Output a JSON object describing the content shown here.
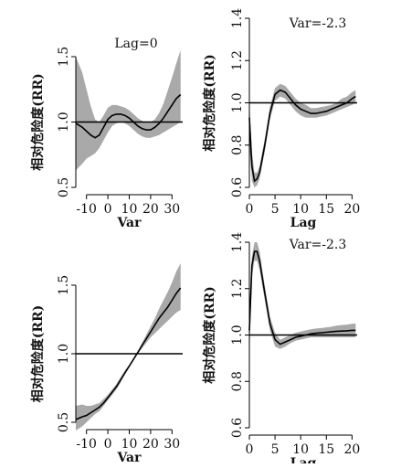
{
  "chart_data": [
    {
      "type": "line",
      "title": "Lag=0",
      "xlabel": "Var",
      "ylabel": "相对危险度(RR)",
      "xlim": [
        -15,
        35
      ],
      "ylim": [
        0.5,
        1.5
      ],
      "xticks": [
        "-10",
        "0",
        "10",
        "20",
        "30"
      ],
      "xtick_values": [
        -10,
        0,
        10,
        20,
        30
      ],
      "yticks": [
        "0.5",
        "1.0",
        "1.5"
      ],
      "ytick_values": [
        0.5,
        1.0,
        1.5
      ],
      "reference_line": 1.0,
      "x": [
        -15,
        -12,
        -10,
        -8,
        -6,
        -4,
        -2,
        0,
        2,
        4,
        6,
        8,
        10,
        12,
        14,
        16,
        18,
        20,
        22,
        24,
        26,
        28,
        30,
        32,
        34
      ],
      "series": [
        {
          "role": "estimate",
          "values": [
            0.99,
            0.96,
            0.93,
            0.9,
            0.88,
            0.9,
            0.96,
            1.02,
            1.05,
            1.06,
            1.06,
            1.05,
            1.03,
            1.0,
            0.97,
            0.95,
            0.94,
            0.94,
            0.96,
            0.99,
            1.03,
            1.08,
            1.13,
            1.18,
            1.21
          ]
        },
        {
          "role": "ci_lower",
          "values": [
            0.63,
            0.68,
            0.72,
            0.74,
            0.76,
            0.8,
            0.86,
            0.92,
            0.97,
            0.99,
            1.0,
            0.99,
            0.97,
            0.94,
            0.91,
            0.89,
            0.88,
            0.88,
            0.89,
            0.9,
            0.92,
            0.94,
            0.96,
            0.98,
            1.0
          ]
        },
        {
          "role": "ci_upper",
          "values": [
            1.5,
            1.38,
            1.25,
            1.12,
            1.02,
            1.0,
            1.05,
            1.11,
            1.13,
            1.13,
            1.12,
            1.11,
            1.09,
            1.06,
            1.03,
            1.01,
            1.0,
            1.0,
            1.02,
            1.07,
            1.14,
            1.24,
            1.34,
            1.45,
            1.55
          ]
        }
      ]
    },
    {
      "type": "line",
      "title": "Var=-2.3",
      "xlabel": "Lag",
      "ylabel": "相对危险度(RR)",
      "xlim": [
        0,
        21
      ],
      "ylim": [
        0.6,
        1.4
      ],
      "xticks": [
        "0",
        "5",
        "10",
        "15",
        "20"
      ],
      "xtick_values": [
        0,
        5,
        10,
        15,
        20
      ],
      "yticks": [
        "0.6",
        "0.8",
        "1.0",
        "1.2",
        "1.4"
      ],
      "ytick_values": [
        0.6,
        0.8,
        1.0,
        1.2,
        1.4
      ],
      "reference_line": 1.0,
      "x": [
        0,
        0.5,
        1,
        1.5,
        2,
        3,
        4,
        5,
        6,
        7,
        8,
        9,
        10,
        11,
        12,
        13,
        14,
        15,
        16,
        17,
        18,
        19,
        20,
        20.7
      ],
      "series": [
        {
          "role": "estimate",
          "values": [
            0.93,
            0.7,
            0.63,
            0.64,
            0.67,
            0.8,
            0.95,
            1.04,
            1.06,
            1.05,
            1.02,
            0.99,
            0.97,
            0.96,
            0.95,
            0.95,
            0.955,
            0.96,
            0.97,
            0.98,
            0.99,
            1.0,
            1.02,
            1.03
          ]
        },
        {
          "role": "ci_lower",
          "values": [
            0.8,
            0.63,
            0.6,
            0.61,
            0.64,
            0.77,
            0.92,
            1.01,
            1.03,
            1.02,
            0.99,
            0.96,
            0.94,
            0.93,
            0.93,
            0.93,
            0.935,
            0.94,
            0.95,
            0.96,
            0.97,
            0.98,
            0.99,
            1.0
          ]
        },
        {
          "role": "ci_upper",
          "values": [
            1.0,
            0.77,
            0.67,
            0.67,
            0.7,
            0.83,
            0.98,
            1.07,
            1.09,
            1.08,
            1.05,
            1.02,
            1.0,
            0.99,
            0.975,
            0.975,
            0.98,
            0.985,
            0.99,
            1.0,
            1.02,
            1.03,
            1.05,
            1.06
          ]
        }
      ]
    },
    {
      "type": "line",
      "title": "",
      "xlabel": "Var",
      "ylabel": "相对危险度(RR)",
      "xlim": [
        -15,
        35
      ],
      "ylim": [
        0.5,
        1.5
      ],
      "xticks": [
        "-10",
        "0",
        "10",
        "20",
        "30"
      ],
      "xtick_values": [
        -10,
        0,
        10,
        20,
        30
      ],
      "yticks": [
        "0.5",
        "1.0",
        "1.5"
      ],
      "ytick_values": [
        0.5,
        1.0,
        1.5
      ],
      "reference_line": 1.0,
      "x": [
        -15,
        -12,
        -10,
        -8,
        -6,
        -4,
        -2,
        0,
        2,
        4,
        6,
        8,
        10,
        12,
        14,
        16,
        18,
        20,
        22,
        24,
        26,
        28,
        30,
        32,
        34
      ],
      "series": [
        {
          "role": "estimate",
          "values": [
            0.52,
            0.54,
            0.55,
            0.57,
            0.59,
            0.61,
            0.64,
            0.68,
            0.72,
            0.76,
            0.81,
            0.86,
            0.91,
            0.96,
            1.01,
            1.06,
            1.11,
            1.16,
            1.21,
            1.26,
            1.3,
            1.34,
            1.39,
            1.44,
            1.48
          ]
        },
        {
          "role": "ci_lower",
          "values": [
            0.44,
            0.47,
            0.5,
            0.53,
            0.56,
            0.58,
            0.62,
            0.66,
            0.7,
            0.74,
            0.79,
            0.85,
            0.9,
            0.95,
            1.0,
            1.04,
            1.08,
            1.12,
            1.15,
            1.18,
            1.21,
            1.24,
            1.27,
            1.3,
            1.32
          ]
        },
        {
          "role": "ci_upper",
          "values": [
            0.62,
            0.63,
            0.62,
            0.62,
            0.63,
            0.64,
            0.67,
            0.7,
            0.74,
            0.78,
            0.83,
            0.88,
            0.92,
            0.97,
            1.02,
            1.08,
            1.14,
            1.2,
            1.26,
            1.33,
            1.39,
            1.45,
            1.52,
            1.6,
            1.66
          ]
        }
      ]
    },
    {
      "type": "line",
      "title": "Var=-2.3",
      "xlabel": "Lag",
      "ylabel": "相对危险度(RR)",
      "xlim": [
        0,
        21
      ],
      "ylim": [
        0.6,
        1.4
      ],
      "xticks": [
        "0",
        "5",
        "10",
        "15",
        "20"
      ],
      "xtick_values": [
        0,
        5,
        10,
        15,
        20
      ],
      "yticks": [
        "0.6",
        "0.8",
        "1.0",
        "1.2",
        "1.4"
      ],
      "ytick_values": [
        0.6,
        0.8,
        1.0,
        1.2,
        1.4
      ],
      "reference_line": 1.0,
      "x": [
        0,
        0.5,
        1,
        1.5,
        2,
        3,
        4,
        5,
        6,
        7,
        8,
        9,
        10,
        11,
        12,
        13,
        14,
        15,
        16,
        17,
        18,
        19,
        20,
        20.7
      ],
      "series": [
        {
          "role": "estimate",
          "values": [
            1.02,
            1.3,
            1.36,
            1.36,
            1.32,
            1.18,
            1.05,
            0.98,
            0.96,
            0.97,
            0.98,
            0.99,
            0.995,
            1.0,
            1.005,
            1.008,
            1.01,
            1.012,
            1.014,
            1.016,
            1.017,
            1.018,
            1.02,
            1.02
          ]
        },
        {
          "role": "ci_lower",
          "values": [
            0.9,
            1.25,
            1.32,
            1.32,
            1.28,
            1.15,
            1.02,
            0.95,
            0.94,
            0.95,
            0.965,
            0.975,
            0.98,
            0.985,
            0.99,
            0.99,
            0.99,
            0.99,
            0.99,
            0.99,
            0.99,
            0.99,
            0.99,
            0.99
          ]
        },
        {
          "role": "ci_upper",
          "values": [
            1.1,
            1.34,
            1.4,
            1.4,
            1.36,
            1.21,
            1.08,
            1.01,
            0.98,
            0.99,
            1.0,
            1.01,
            1.015,
            1.02,
            1.025,
            1.028,
            1.03,
            1.033,
            1.036,
            1.04,
            1.043,
            1.045,
            1.048,
            1.05
          ]
        }
      ]
    }
  ]
}
